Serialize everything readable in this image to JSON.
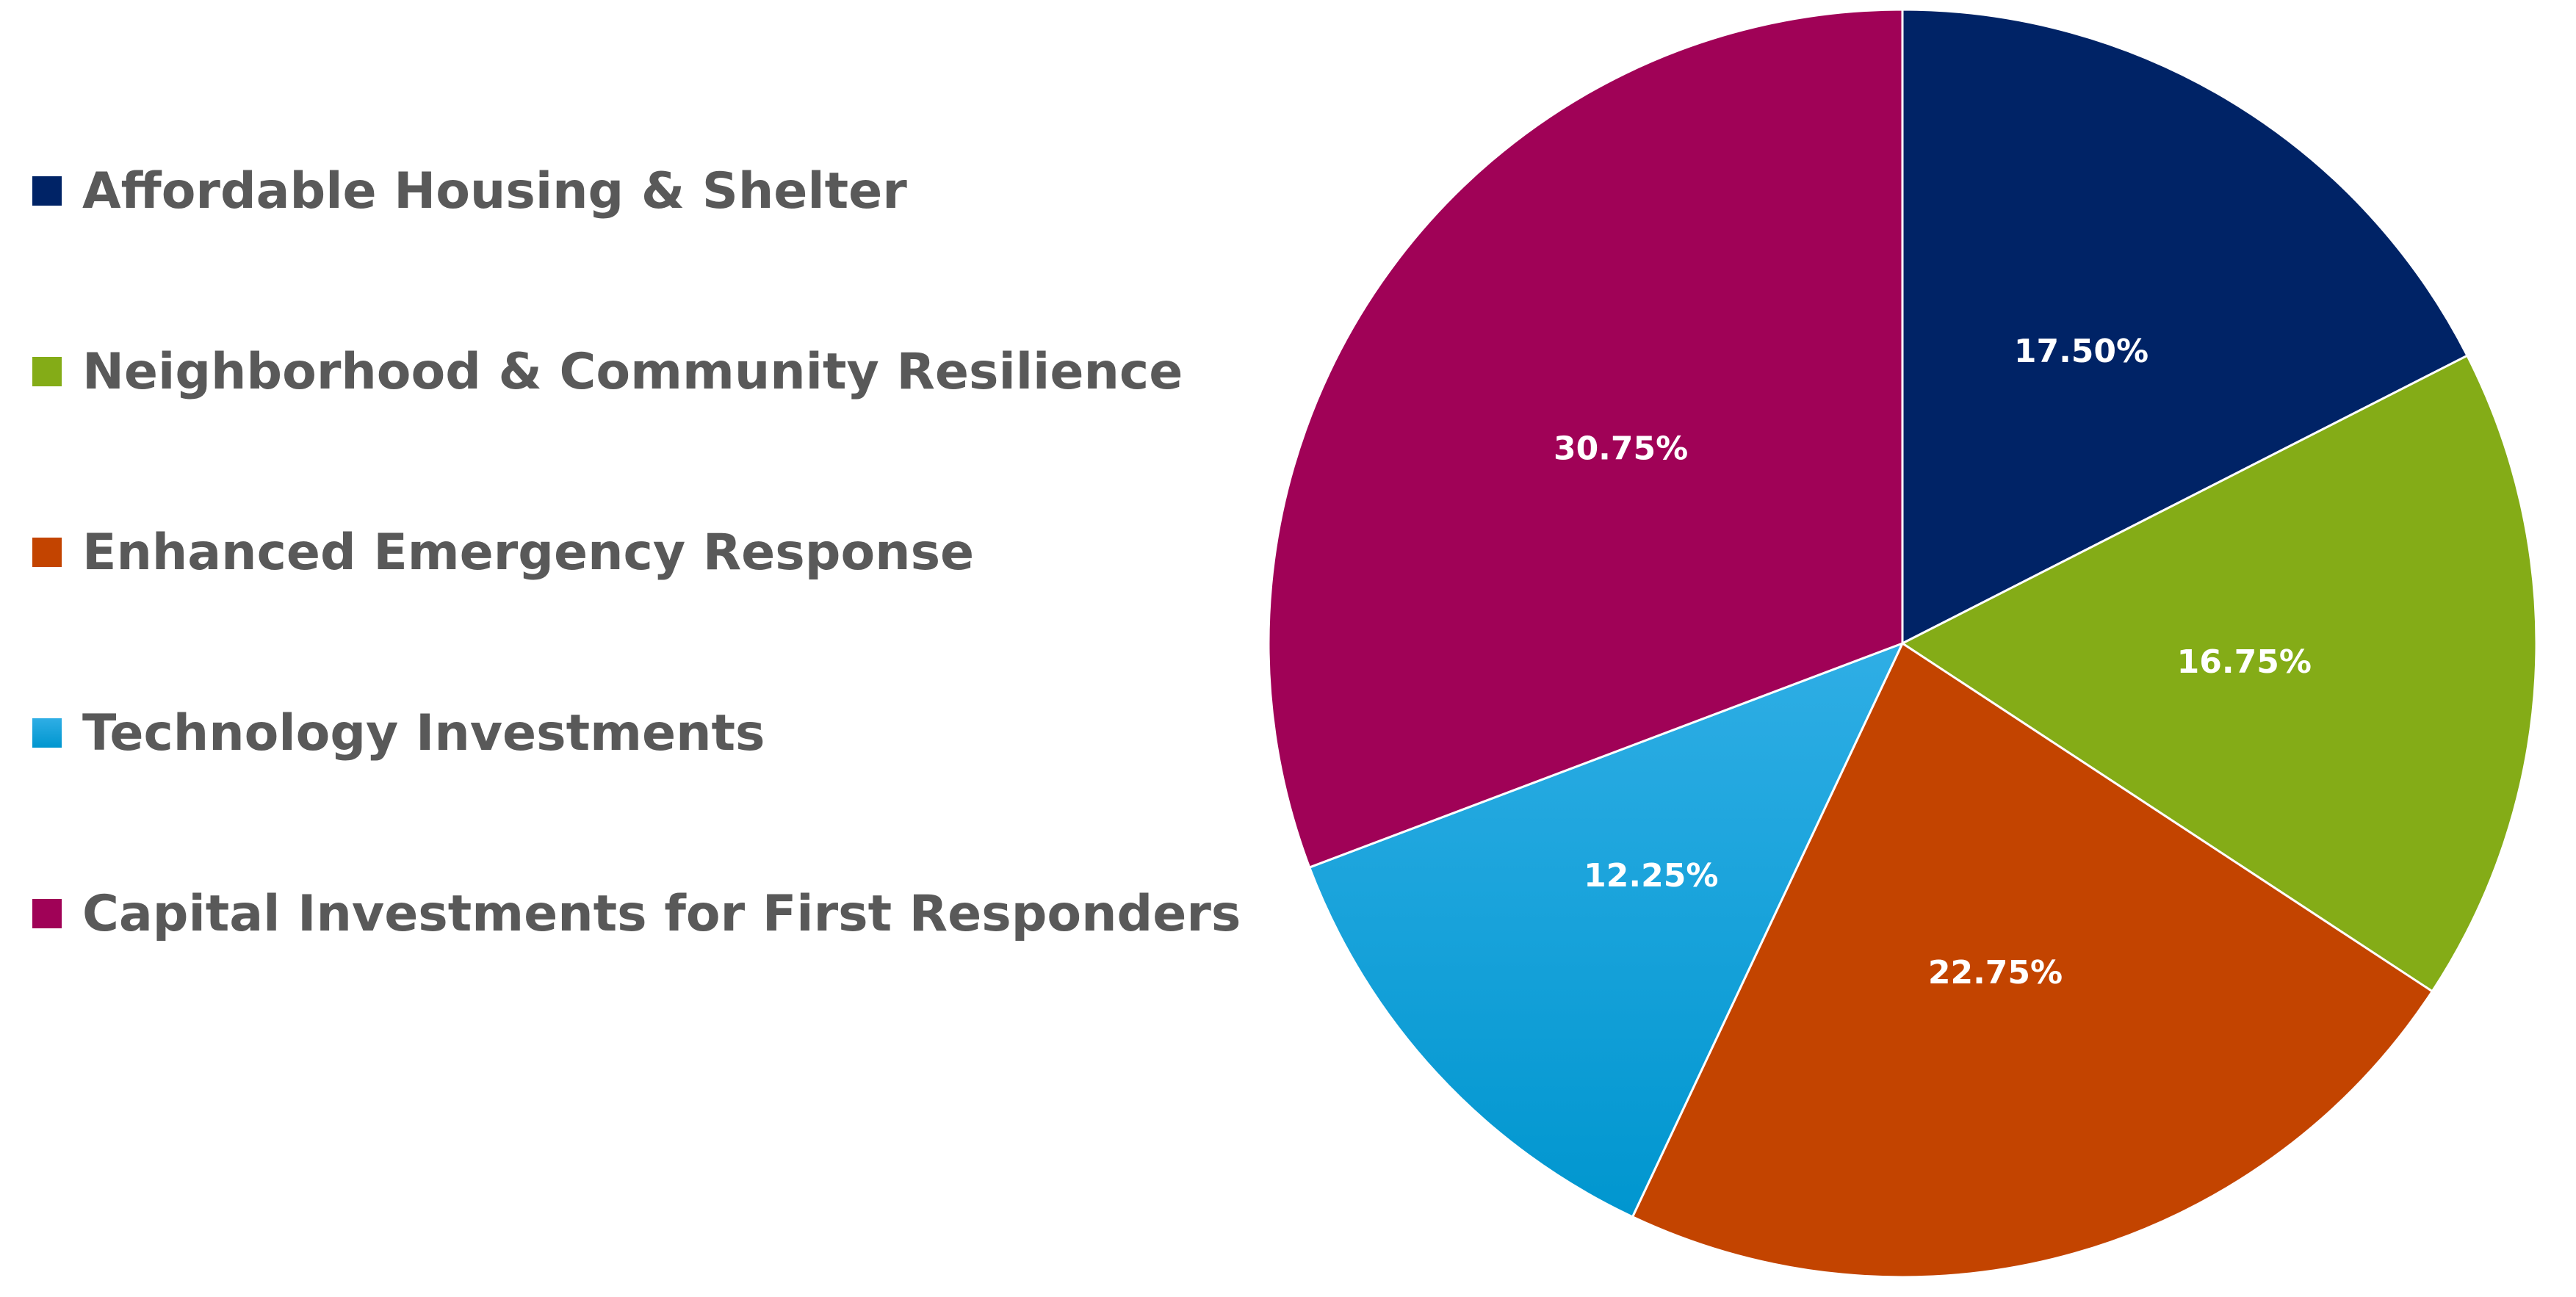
{
  "chart_data": {
    "type": "pie",
    "title": "",
    "categories": [
      "Affordable Housing & Shelter",
      "Neighborhood & Community Resilience",
      "Enhanced Emergency Response",
      "Technology Investments",
      "Capital Investments for First Responders"
    ],
    "values": [
      17.5,
      16.75,
      22.75,
      12.25,
      30.75
    ],
    "value_labels": [
      "17.50%",
      "16.75%",
      "22.75%",
      "12.25%",
      "30.75%"
    ],
    "colors": [
      "#002366",
      "#84AC17",
      "#C34400",
      "#1AA3DE",
      "#A00257"
    ],
    "start_angle_deg": 0,
    "direction": "clockwise",
    "legend_position": "left"
  }
}
